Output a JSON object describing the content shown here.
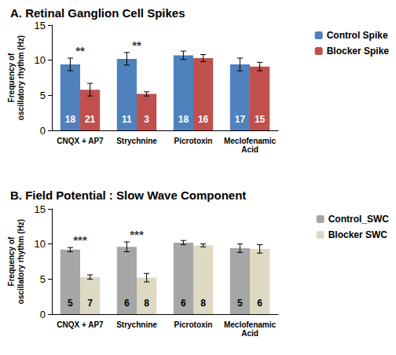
{
  "chart_data": [
    {
      "type": "bar",
      "title": "A. Retinal Ganglion Cell Spikes",
      "ylabel": "Frequency of\noscillatory rhythm (Hz)",
      "categories": [
        "CNQX + AP7",
        "Strychnine",
        "Picrotoxin",
        "Meclofenamic\nAcid"
      ],
      "series": [
        {
          "name": "Control Spike",
          "color": "#4f81bd",
          "values": [
            9.4,
            10.2,
            10.7,
            9.4
          ],
          "errors": [
            0.9,
            0.9,
            0.6,
            0.9
          ],
          "n": [
            18,
            11,
            18,
            17
          ]
        },
        {
          "name": "Blocker Spike",
          "color": "#c0504d",
          "values": [
            5.8,
            5.2,
            10.3,
            9.1
          ],
          "errors": [
            0.9,
            0.3,
            0.5,
            0.6
          ],
          "n": [
            21,
            3,
            16,
            15
          ]
        }
      ],
      "annotations": [
        {
          "category": "CNQX + AP7",
          "text": "**"
        },
        {
          "category": "Strychnine",
          "text": "**"
        }
      ],
      "ylim": [
        0,
        15
      ],
      "yticks": [
        0,
        5,
        10,
        15
      ],
      "grid": false,
      "legend": "upper right"
    },
    {
      "type": "bar",
      "title": "B. Field Potential : Slow Wave Component",
      "ylabel": "Frequency of\noscillatory rhythm (Hz)",
      "categories": [
        "CNQX + AP7",
        "Strychnine",
        "Picrotoxin",
        "Meclofenamic\nAcid"
      ],
      "series": [
        {
          "name": "Control_SWC",
          "color": "#a6a6a6",
          "values": [
            9.2,
            9.6,
            10.2,
            9.4
          ],
          "errors": [
            0.3,
            0.7,
            0.3,
            0.6
          ],
          "n": [
            5,
            6,
            6,
            5
          ]
        },
        {
          "name": "Blocker SWC",
          "color": "#ddd9c3",
          "values": [
            5.3,
            5.2,
            9.8,
            9.3
          ],
          "errors": [
            0.3,
            0.6,
            0.2,
            0.6
          ],
          "n": [
            7,
            8,
            8,
            6
          ]
        }
      ],
      "annotations": [
        {
          "category": "CNQX + AP7",
          "text": "***"
        },
        {
          "category": "Strychnine",
          "text": "***"
        }
      ],
      "ylim": [
        0,
        15
      ],
      "yticks": [
        0,
        5,
        10,
        15
      ],
      "grid": false,
      "legend": "upper right"
    }
  ]
}
